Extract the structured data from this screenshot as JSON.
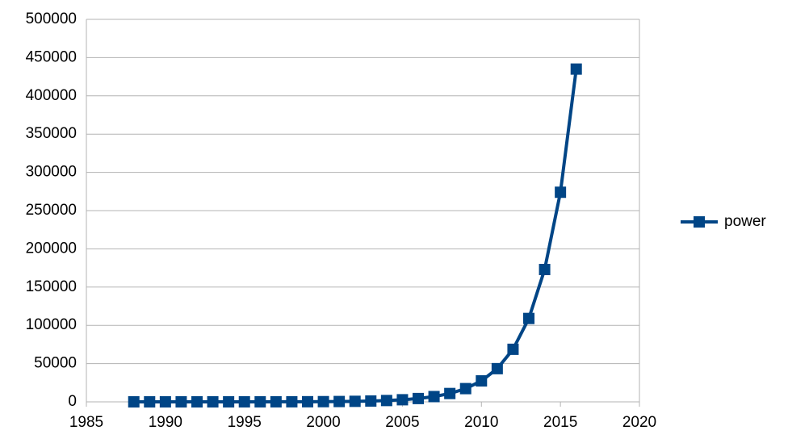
{
  "chart_data": {
    "type": "line",
    "x": [
      1988,
      1989,
      1990,
      1991,
      1992,
      1993,
      1994,
      1995,
      1996,
      1997,
      1998,
      1999,
      2000,
      2001,
      2002,
      2003,
      2004,
      2005,
      2006,
      2007,
      2008,
      2009,
      2010,
      2011,
      2012,
      2013,
      2014,
      2015,
      2016
    ],
    "series": [
      {
        "name": "power",
        "color": "#004586",
        "values": [
          1,
          2,
          3,
          4,
          7,
          11,
          17,
          27,
          43,
          69,
          109,
          173,
          274,
          434,
          688,
          1090,
          1730,
          2740,
          4340,
          6880,
          10900,
          17300,
          27400,
          43400,
          68700,
          109000,
          173000,
          274000,
          435000
        ]
      }
    ],
    "xlim": [
      1985,
      2020
    ],
    "xticks": [
      1985,
      1990,
      1995,
      2000,
      2005,
      2010,
      2015,
      2020
    ],
    "ylim": [
      0,
      500000
    ],
    "yticks": [
      0,
      50000,
      100000,
      150000,
      200000,
      250000,
      300000,
      350000,
      400000,
      450000,
      500000
    ],
    "grid": true,
    "legend": "right"
  }
}
